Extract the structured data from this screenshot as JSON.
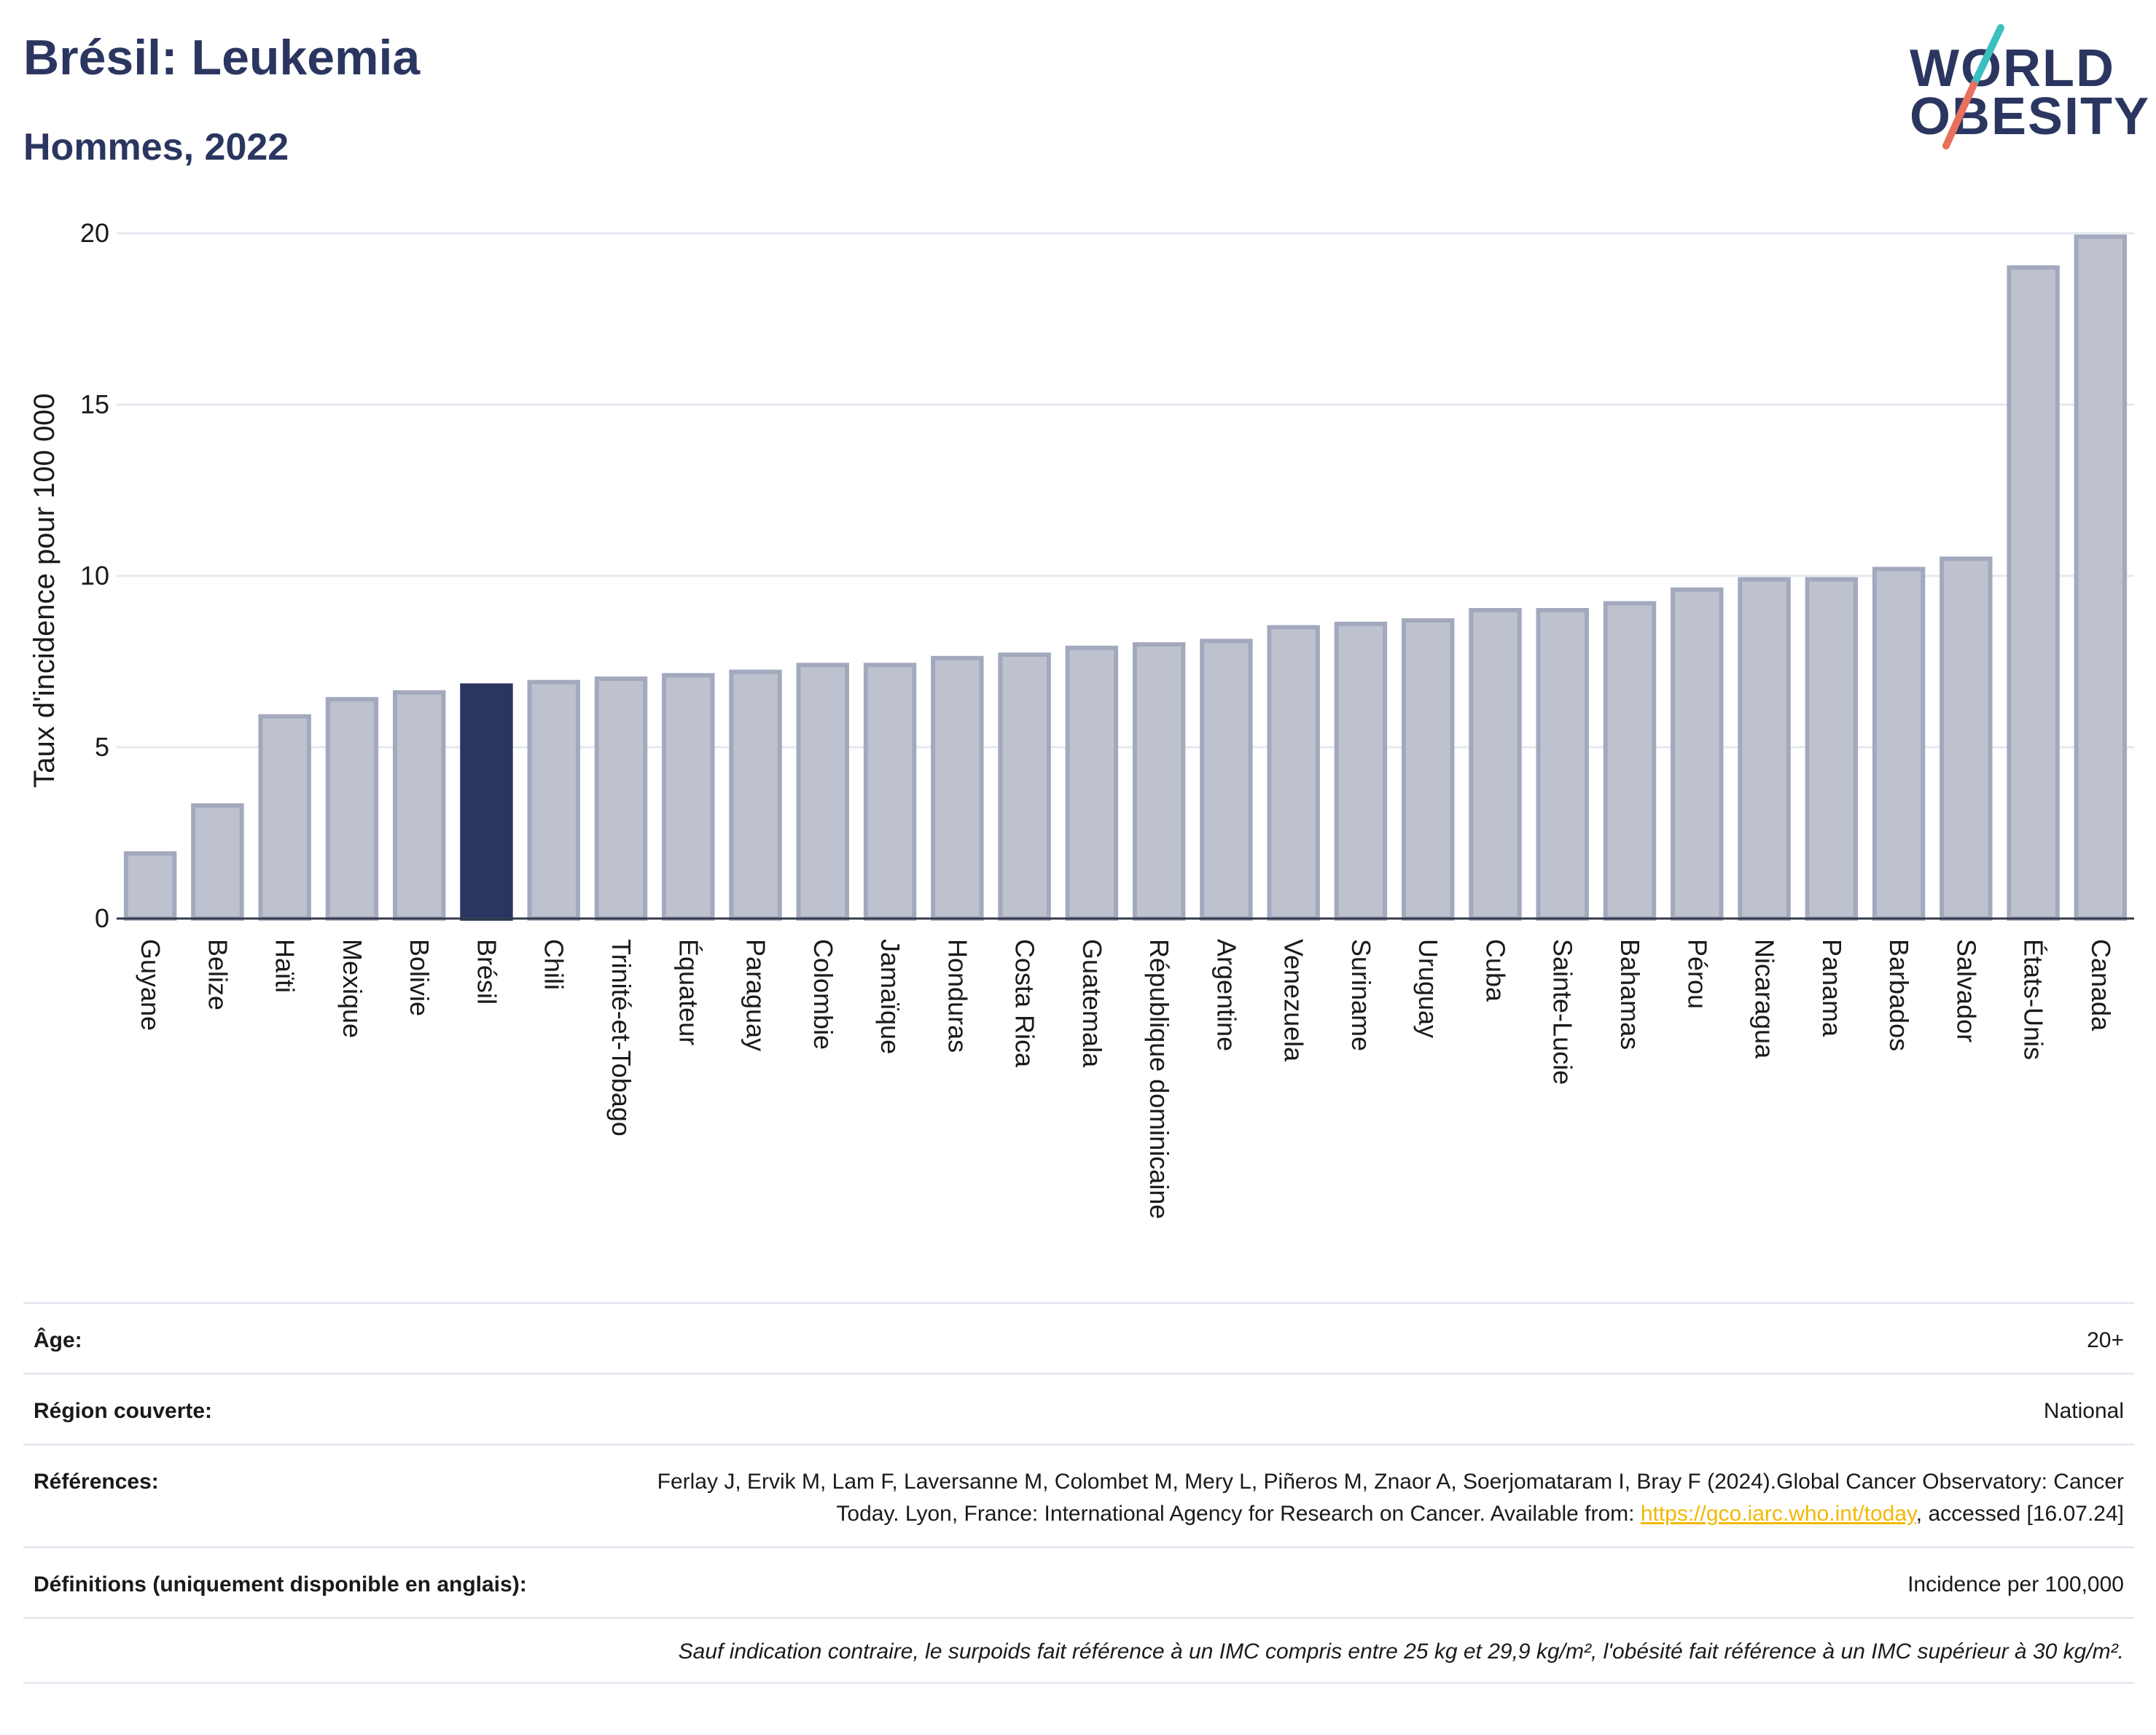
{
  "header": {
    "title": "Brésil: Leukemia",
    "subtitle": "Hommes, 2022",
    "logo_line1": "WORLD",
    "logo_line2": "OBESITY"
  },
  "colors": {
    "highlight": "#2b3660",
    "bar_fill": "#bec2cf",
    "bar_stroke": "#a3a9bd",
    "grid": "#e6e8ef",
    "logo_teal": "#3bbfbf",
    "logo_coral": "#e8705c"
  },
  "chart_data": {
    "type": "bar",
    "ylabel": "Taux d'incidence pour 100 000",
    "ylim": [
      0,
      20
    ],
    "yticks": [
      0,
      5,
      10,
      15,
      20
    ],
    "grid": true,
    "highlight": "Brésil",
    "categories": [
      "Guyane",
      "Belize",
      "Haïti",
      "Mexique",
      "Bolivie",
      "Brésil",
      "Chili",
      "Trinité-et-Tobago",
      "Équateur",
      "Paraguay",
      "Colombie",
      "Jamaïque",
      "Honduras",
      "Costa Rica",
      "Guatemala",
      "République dominicaine",
      "Argentine",
      "Venezuela",
      "Suriname",
      "Uruguay",
      "Cuba",
      "Sainte-Lucie",
      "Bahamas",
      "Pérou",
      "Nicaragua",
      "Panama",
      "Barbados",
      "Salvador",
      "États-Unis",
      "Canada"
    ],
    "values": [
      1.9,
      3.3,
      5.9,
      6.4,
      6.6,
      6.8,
      6.9,
      7.0,
      7.1,
      7.2,
      7.4,
      7.4,
      7.6,
      7.7,
      7.9,
      8.0,
      8.1,
      8.5,
      8.6,
      8.7,
      9.0,
      9.0,
      9.2,
      9.6,
      9.9,
      9.9,
      10.2,
      10.5,
      19.0,
      19.9
    ]
  },
  "info": {
    "age_label": "Âge:",
    "age_value": "20+",
    "region_label": "Région couverte:",
    "region_value": "National",
    "refs_label": "Références:",
    "refs_text_1": "Ferlay J, Ervik M, Lam F, Laversanne M, Colombet M, Mery L, Piñeros M, Znaor A, Soerjomataram I, Bray F (2024).Global Cancer Observatory: Cancer Today. Lyon, France: International Agency for Research on Cancer. Available from: ",
    "refs_link": "https://gco.iarc.who.int/today",
    "refs_text_2": ", accessed [16.07.24]",
    "defs_label": "Définitions (uniquement disponible en anglais):",
    "defs_value": "Incidence per 100,000",
    "note": "Sauf indication contraire, le surpoids fait référence à un IMC compris entre 25 kg et 29,9 kg/m², l'obésité fait référence à un IMC supérieur à 30 kg/m²."
  }
}
